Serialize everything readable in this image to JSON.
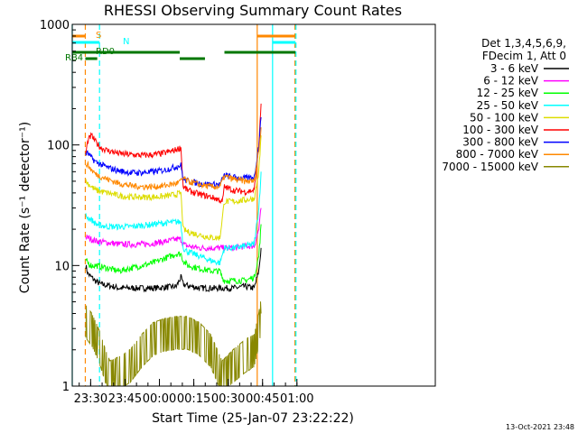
{
  "chart_data": {
    "type": "line",
    "title": "RHESSI Observing Summary Count Rates",
    "xlabel": "Start Time (25-Jan-07 23:22:22)",
    "ylabel": "Count Rate (s⁻¹ detector⁻¹)",
    "ylog": true,
    "ylim": [
      1,
      1000
    ],
    "xlim_minutes": [
      -0.4,
      158
    ],
    "x_tick_labels": [
      "23:30",
      "23:45",
      "00:00",
      "00:15",
      "00:30",
      "00:45",
      "01:00"
    ],
    "x_tick_minutes": [
      7.63,
      22.63,
      37.63,
      52.63,
      67.63,
      82.63,
      97.63
    ],
    "y_tick_labels": [
      "1",
      "10",
      "100",
      "1000"
    ],
    "y_tick_values": [
      1,
      10,
      100,
      1000
    ],
    "legend_header": [
      "Det 1,3,4,5,6,9,",
      "FDecim 1, Att 0"
    ],
    "legend_position": "right",
    "series": [
      {
        "name": "3 - 6 keV",
        "color": "#000000",
        "values": [
          [
            5.5,
            10
          ],
          [
            6.5,
            8.5
          ],
          [
            8,
            8
          ],
          [
            9.5,
            7.5
          ],
          [
            12,
            7
          ],
          [
            16,
            6.8
          ],
          [
            20,
            6.5
          ],
          [
            25,
            6.5
          ],
          [
            30,
            6.5
          ],
          [
            35,
            6.5
          ],
          [
            40,
            6.6
          ],
          [
            45,
            6.7
          ],
          [
            47,
            8
          ],
          [
            48,
            7
          ],
          [
            50,
            6.8
          ],
          [
            55,
            6.5
          ],
          [
            60,
            6.5
          ],
          [
            64,
            6.5
          ],
          [
            66,
            6.5
          ],
          [
            70,
            6.5
          ],
          [
            75,
            6.7
          ],
          [
            79,
            6.5
          ],
          [
            81,
            9
          ],
          [
            82,
            14
          ]
        ]
      },
      {
        "name": "6 - 12 keV",
        "color": "#ff00ff",
        "values": [
          [
            5.5,
            17
          ],
          [
            6.5,
            17
          ],
          [
            8,
            16.5
          ],
          [
            10,
            16
          ],
          [
            15,
            15.5
          ],
          [
            20,
            15
          ],
          [
            25,
            15
          ],
          [
            30,
            15
          ],
          [
            35,
            15.3
          ],
          [
            40,
            15.8
          ],
          [
            45,
            16.5
          ],
          [
            47,
            16.5
          ],
          [
            48,
            15
          ],
          [
            50,
            14.5
          ],
          [
            55,
            14
          ],
          [
            60,
            14
          ],
          [
            64,
            14
          ],
          [
            66,
            14
          ],
          [
            70,
            14
          ],
          [
            75,
            14.5
          ],
          [
            79,
            14.5
          ],
          [
            81,
            20
          ],
          [
            82,
            30
          ]
        ]
      },
      {
        "name": "12 - 25 keV",
        "color": "#00ff00",
        "values": [
          [
            5.5,
            11
          ],
          [
            6.5,
            10.5
          ],
          [
            8,
            10
          ],
          [
            10,
            10
          ],
          [
            15,
            9.5
          ],
          [
            20,
            9
          ],
          [
            25,
            9.5
          ],
          [
            30,
            10
          ],
          [
            35,
            10.5
          ],
          [
            40,
            11.5
          ],
          [
            45,
            12.5
          ],
          [
            47,
            12.5
          ],
          [
            48,
            11
          ],
          [
            50,
            10
          ],
          [
            55,
            9.5
          ],
          [
            60,
            9
          ],
          [
            64,
            9
          ],
          [
            65,
            8
          ],
          [
            66,
            7.5
          ],
          [
            70,
            7.5
          ],
          [
            75,
            7.5
          ],
          [
            79,
            8
          ],
          [
            81,
            12
          ],
          [
            82,
            22
          ]
        ]
      },
      {
        "name": "25 - 50 keV",
        "color": "#00ffff",
        "values": [
          [
            5.5,
            26
          ],
          [
            6.5,
            25
          ],
          [
            8,
            24
          ],
          [
            10,
            22
          ],
          [
            15,
            21
          ],
          [
            20,
            21
          ],
          [
            25,
            21
          ],
          [
            30,
            21.5
          ],
          [
            35,
            22
          ],
          [
            40,
            22.5
          ],
          [
            45,
            23
          ],
          [
            47,
            23
          ],
          [
            48,
            14
          ],
          [
            50,
            13
          ],
          [
            55,
            12
          ],
          [
            60,
            11
          ],
          [
            64,
            10.5
          ],
          [
            66,
            14
          ],
          [
            70,
            14
          ],
          [
            75,
            14.5
          ],
          [
            79,
            15
          ],
          [
            81,
            30
          ],
          [
            82,
            60
          ]
        ]
      },
      {
        "name": "50 - 100 keV",
        "color": "#dddd00",
        "values": [
          [
            5.5,
            50
          ],
          [
            6.5,
            48
          ],
          [
            8,
            45
          ],
          [
            10,
            42
          ],
          [
            15,
            40
          ],
          [
            20,
            38
          ],
          [
            25,
            37
          ],
          [
            30,
            37
          ],
          [
            35,
            37
          ],
          [
            40,
            37.5
          ],
          [
            45,
            39
          ],
          [
            47,
            40
          ],
          [
            48,
            20
          ],
          [
            50,
            19
          ],
          [
            55,
            18
          ],
          [
            60,
            17
          ],
          [
            64,
            17
          ],
          [
            66,
            34
          ],
          [
            70,
            34
          ],
          [
            75,
            35
          ],
          [
            79,
            36
          ],
          [
            81,
            60
          ],
          [
            82,
            120
          ]
        ]
      },
      {
        "name": "100 - 300 keV",
        "color": "#ff0000",
        "values": [
          [
            5.5,
            85
          ],
          [
            6.5,
            110
          ],
          [
            8,
            120
          ],
          [
            10,
            105
          ],
          [
            12,
            95
          ],
          [
            15,
            90
          ],
          [
            20,
            85
          ],
          [
            25,
            83
          ],
          [
            30,
            82
          ],
          [
            35,
            83
          ],
          [
            40,
            86
          ],
          [
            44,
            90
          ],
          [
            47,
            95
          ],
          [
            48,
            45
          ],
          [
            50,
            42
          ],
          [
            55,
            39
          ],
          [
            60,
            37
          ],
          [
            64,
            35
          ],
          [
            65,
            33
          ],
          [
            66,
            45
          ],
          [
            70,
            42
          ],
          [
            75,
            41
          ],
          [
            79,
            42
          ],
          [
            81,
            100
          ],
          [
            82,
            220
          ]
        ]
      },
      {
        "name": "300 - 800 keV",
        "color": "#0000ff",
        "values": [
          [
            5.5,
            85
          ],
          [
            6.5,
            85
          ],
          [
            8,
            78
          ],
          [
            10,
            72
          ],
          [
            15,
            65
          ],
          [
            20,
            61
          ],
          [
            25,
            59
          ],
          [
            30,
            59
          ],
          [
            35,
            60
          ],
          [
            40,
            62
          ],
          [
            45,
            66
          ],
          [
            47,
            68
          ],
          [
            48,
            52
          ],
          [
            50,
            50
          ],
          [
            55,
            48
          ],
          [
            60,
            47
          ],
          [
            64,
            47
          ],
          [
            66,
            56
          ],
          [
            70,
            54
          ],
          [
            75,
            53
          ],
          [
            79,
            54
          ],
          [
            81,
            100
          ],
          [
            82,
            170
          ]
        ]
      },
      {
        "name": "800 - 7000 keV",
        "color": "#ff8800",
        "values": [
          [
            5.5,
            70
          ],
          [
            6.5,
            68
          ],
          [
            8,
            62
          ],
          [
            10,
            57
          ],
          [
            15,
            52
          ],
          [
            20,
            48
          ],
          [
            25,
            46
          ],
          [
            30,
            45
          ],
          [
            35,
            45
          ],
          [
            40,
            46
          ],
          [
            45,
            48
          ],
          [
            47,
            50
          ],
          [
            48,
            53
          ],
          [
            50,
            50
          ],
          [
            55,
            47
          ],
          [
            60,
            45
          ],
          [
            64,
            45
          ],
          [
            66,
            55
          ],
          [
            70,
            52
          ],
          [
            75,
            50
          ],
          [
            79,
            50
          ],
          [
            81,
            90
          ],
          [
            82,
            140
          ]
        ]
      },
      {
        "name": "7000 - 15000 keV",
        "color": "#888800",
        "values": [
          [
            5.5,
            3.5
          ],
          [
            8,
            3
          ],
          [
            10,
            2.5
          ],
          [
            12,
            2
          ],
          [
            14,
            1.5
          ],
          [
            16,
            1.2
          ],
          [
            20,
            1.3
          ],
          [
            25,
            1.5
          ],
          [
            30,
            2
          ],
          [
            35,
            2.5
          ],
          [
            40,
            2.7
          ],
          [
            45,
            2.8
          ],
          [
            50,
            2.8
          ],
          [
            55,
            2.5
          ],
          [
            60,
            2
          ],
          [
            65,
            1.2
          ],
          [
            70,
            1.5
          ],
          [
            75,
            1.8
          ],
          [
            79,
            2
          ],
          [
            81,
            3
          ],
          [
            82,
            4
          ]
        ]
      }
    ],
    "bars": [
      {
        "label": "S",
        "color": "#ff8800",
        "segments": [
          [
            -0.4,
            5.3
          ],
          [
            80.3,
            97
          ]
        ]
      },
      {
        "label": "N",
        "color": "#00ffff",
        "segments": [
          [
            -0.4,
            11.5
          ],
          [
            87,
            97
          ]
        ]
      },
      {
        "label": "RD0",
        "color": "#007700",
        "segments": [
          [
            -0.4,
            46.5
          ],
          [
            66,
            97
          ]
        ]
      },
      {
        "label": "RB4",
        "color": "#007700",
        "segments": [
          [
            5.3,
            10.5
          ],
          [
            46.5,
            57.5
          ]
        ]
      }
    ],
    "vlines": [
      {
        "x": -0.4,
        "color": "#00ffff",
        "dash": false
      },
      {
        "x": 5.3,
        "color": "#ff8800",
        "dash": true
      },
      {
        "x": 11.5,
        "color": "#00ffff",
        "dash": true
      },
      {
        "x": 80.3,
        "color": "#ff8800",
        "dash": false
      },
      {
        "x": 87,
        "color": "#00ffff",
        "dash": false
      },
      {
        "x": 96.8,
        "color": "#ff8800",
        "dash": true
      },
      {
        "x": 97.2,
        "color": "#00ffff",
        "dash": true
      }
    ],
    "grid": false
  },
  "footer_date": "13-Oct-2021 23:48"
}
